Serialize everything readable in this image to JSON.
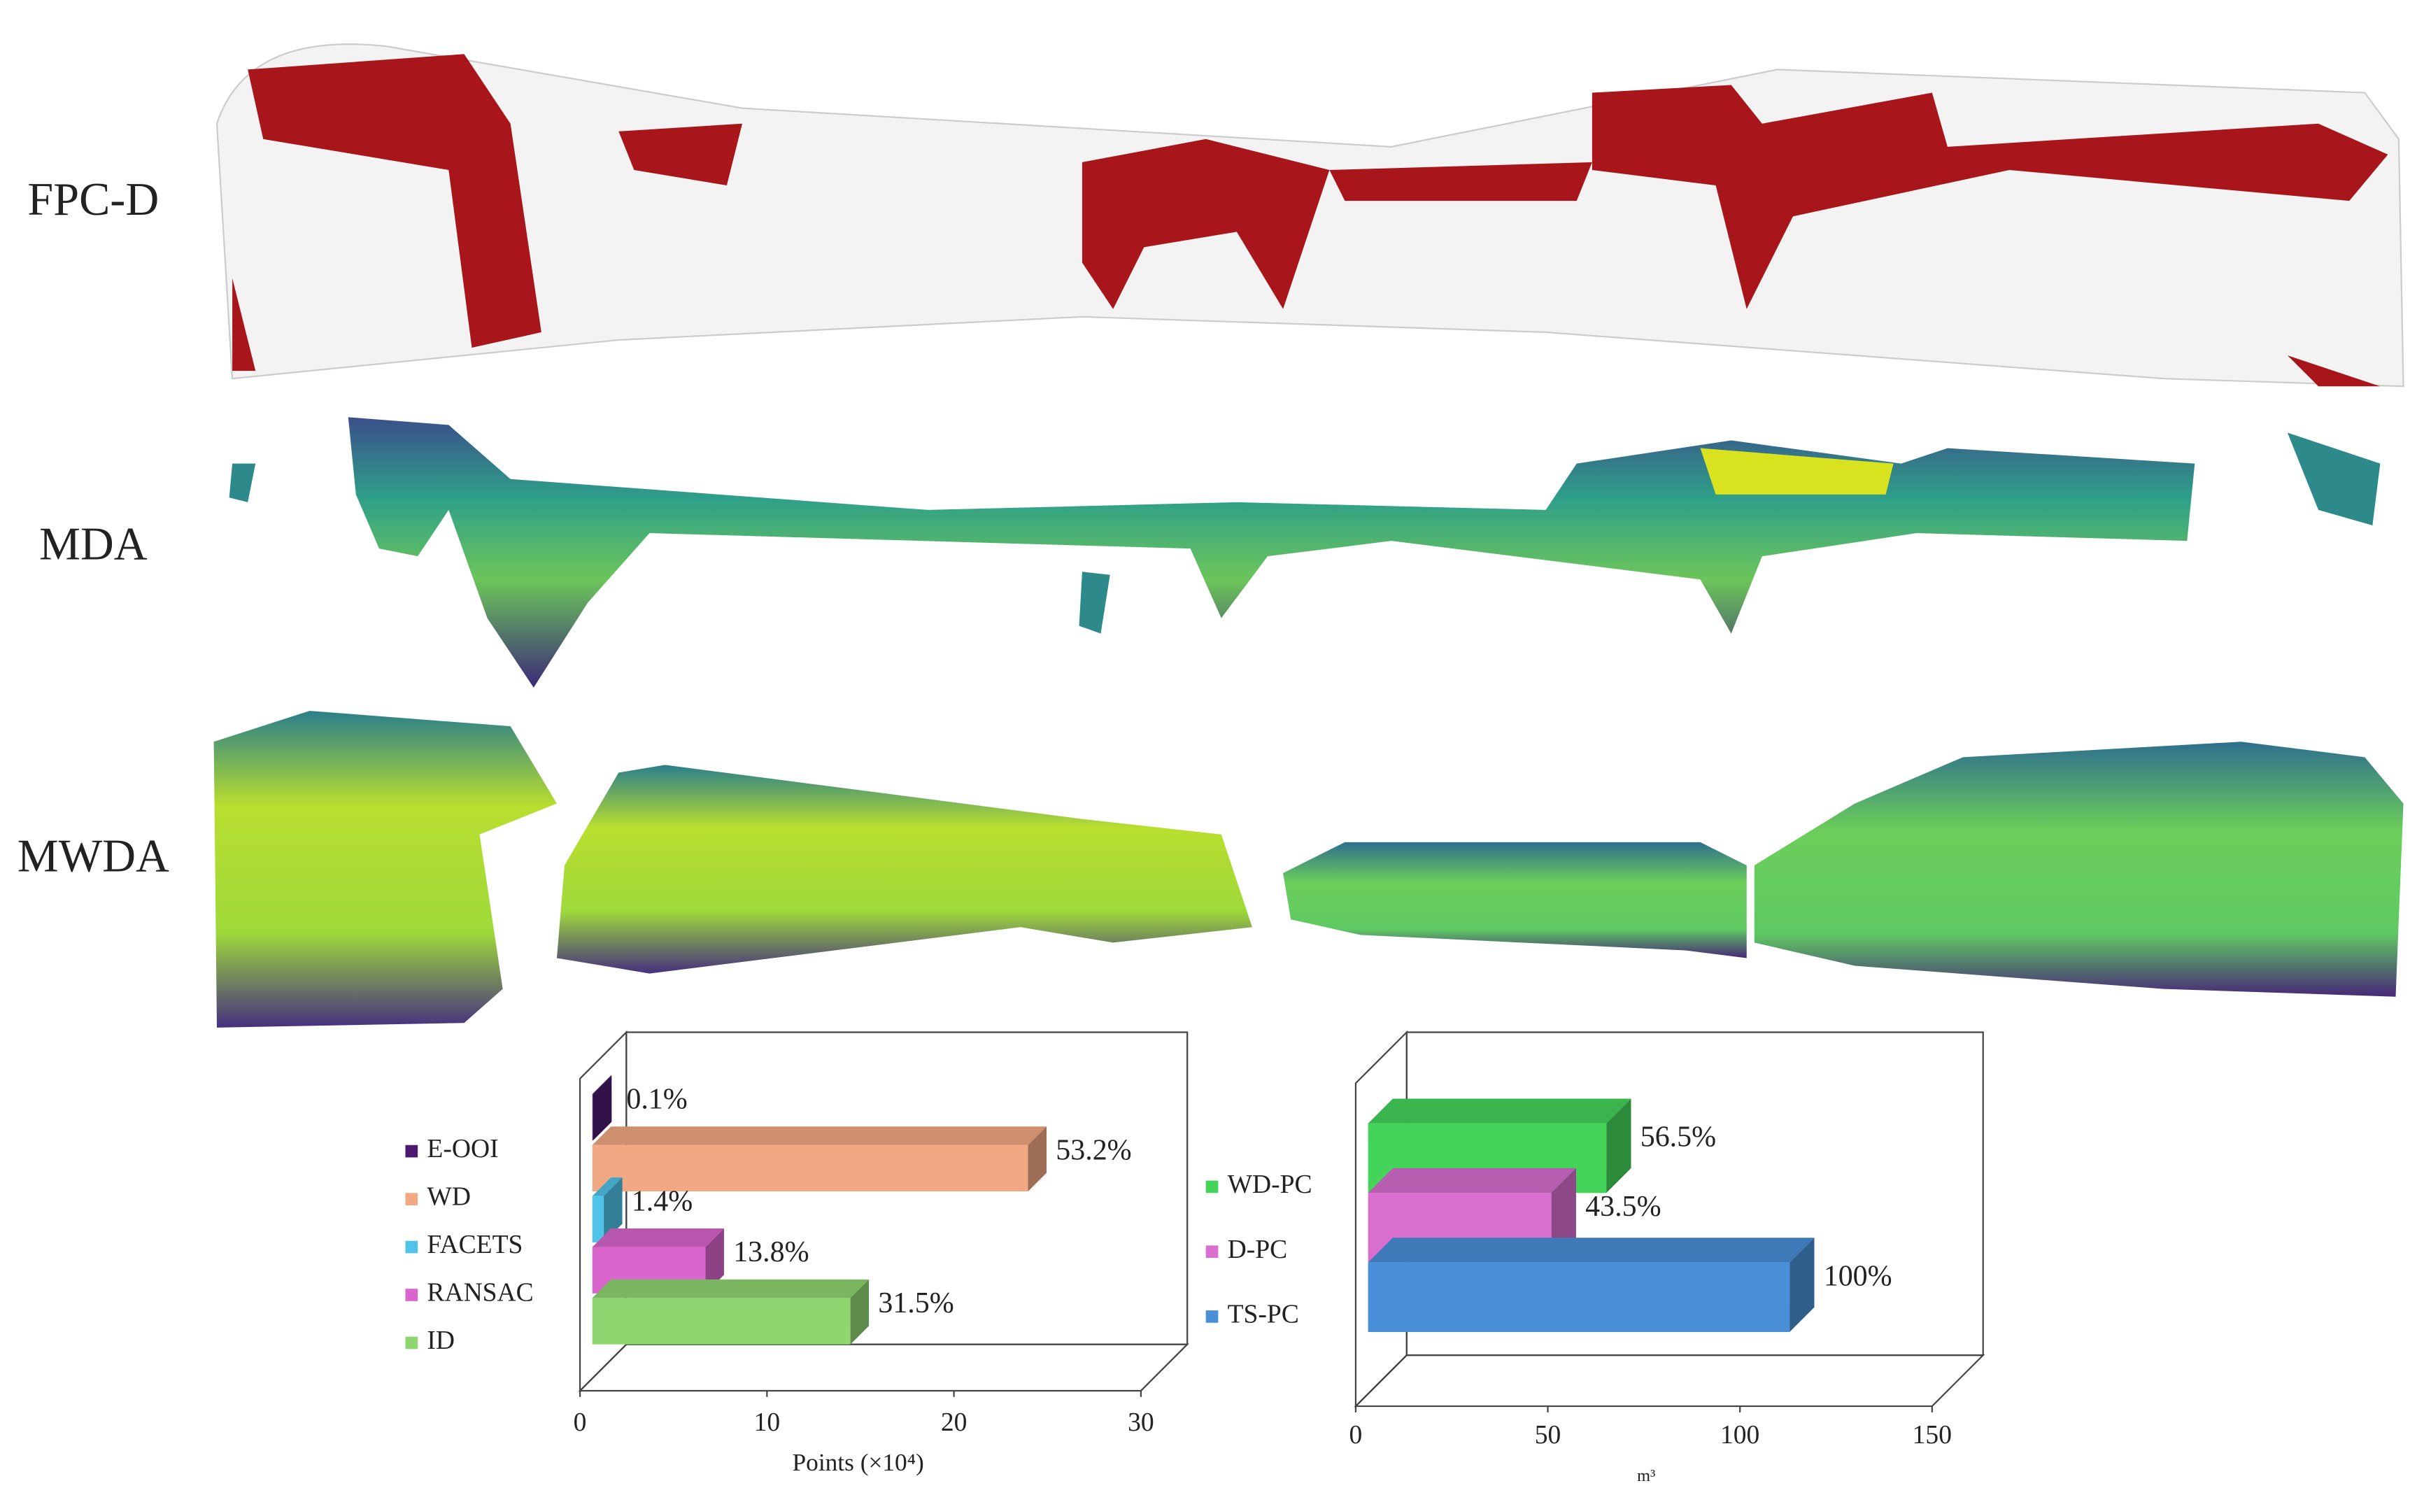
{
  "panel_labels": [
    "FPC-D",
    "MDA",
    "MWDA"
  ],
  "chart_data": [
    {
      "type": "bar3d_horizontal",
      "xlabel": "Points (×10⁴)",
      "categories": [
        "E-OOI",
        "WD",
        "FACETS",
        "RANSAC",
        "ID"
      ],
      "values": [
        0.04,
        23.3,
        0.61,
        6.05,
        13.8
      ],
      "percent_labels": [
        "0.1%",
        "53.2%",
        "1.4%",
        "13.8%",
        "31.5%"
      ],
      "colors": [
        "#4b1a6e",
        "#f2a882",
        "#4fc3e8",
        "#d966cc",
        "#8fd670"
      ],
      "xlim": [
        0,
        30
      ],
      "xticks": [
        0,
        10,
        20,
        30
      ]
    },
    {
      "type": "bar3d_horizontal",
      "xlabel": "m³",
      "categories": [
        "WD-PC",
        "D-PC",
        "TS-PC"
      ],
      "values": [
        62,
        47.7,
        109.7
      ],
      "percent_labels": [
        "56.5%",
        "43.5%",
        "100%"
      ],
      "colors": [
        "#44d45a",
        "#d96fcf",
        "#4a90d9"
      ],
      "xlim": [
        0,
        150
      ],
      "xticks": [
        0,
        50,
        100,
        150
      ]
    }
  ]
}
